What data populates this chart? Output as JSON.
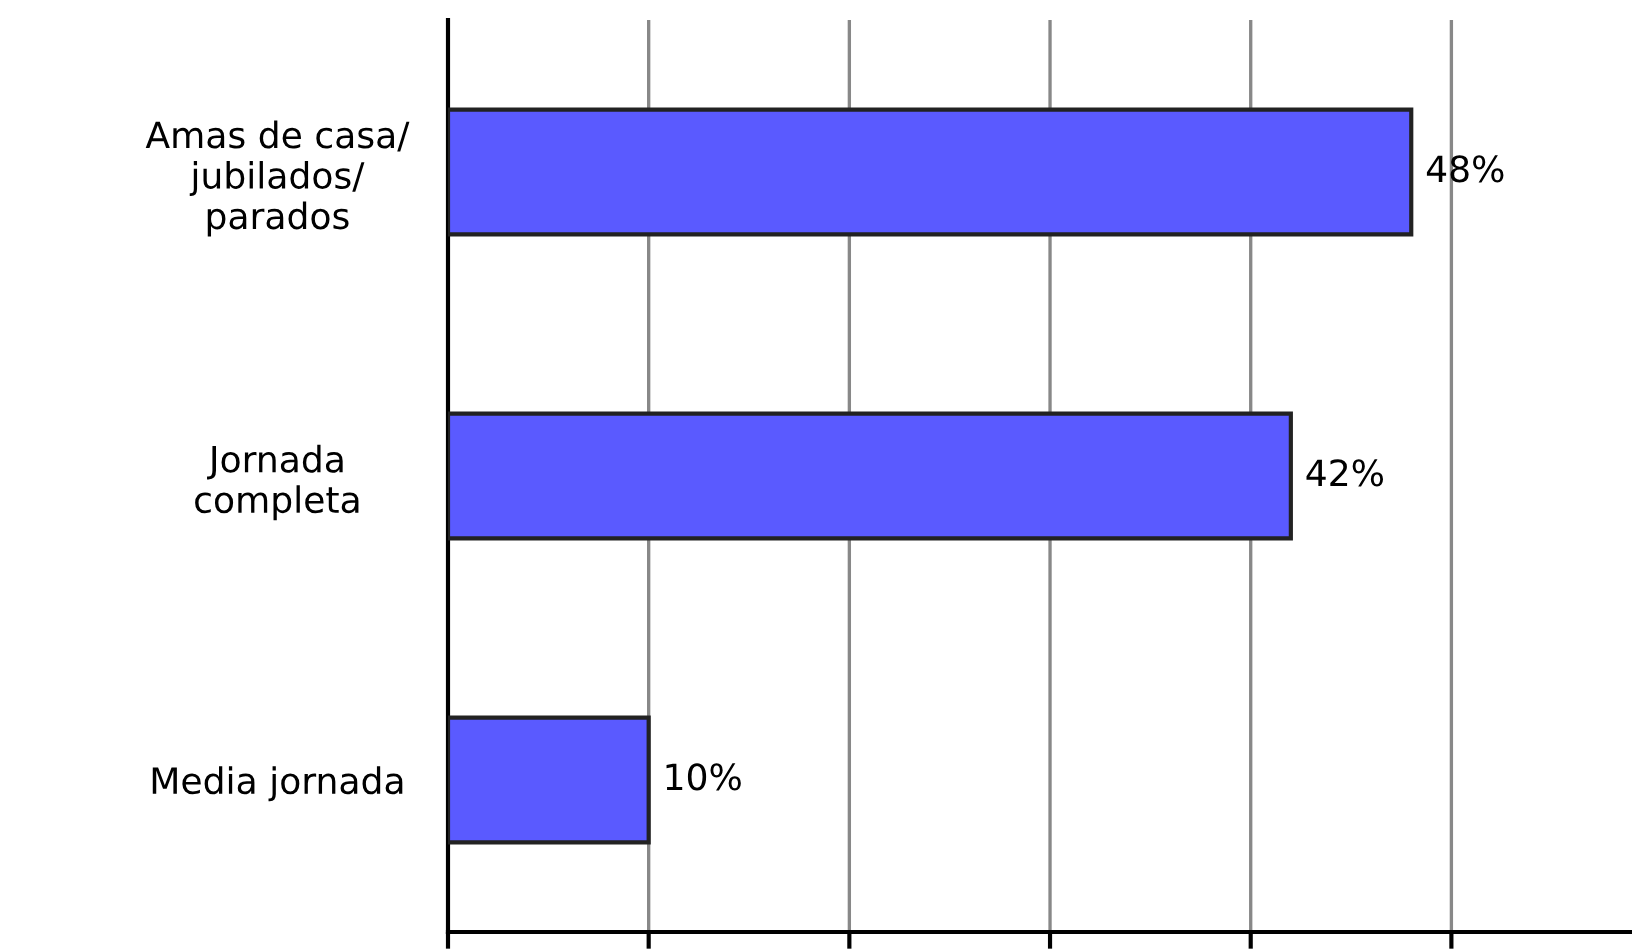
{
  "chart_data": {
    "type": "bar",
    "orientation": "horizontal",
    "categories": [
      "Amas de casa/\njubilados/\nparados",
      "Jornada\ncompleta",
      "Media jornada"
    ],
    "values": [
      48,
      42,
      10
    ],
    "value_labels": [
      "48%",
      "42%",
      "10%"
    ],
    "color": "#5a5aff",
    "xlim": [
      0,
      59
    ],
    "xticks": [
      {
        "value": 0,
        "label": null
      },
      {
        "value": 10,
        "label": null
      },
      {
        "value": 20,
        "label": null
      },
      {
        "value": 30,
        "label": null
      },
      {
        "value": 40,
        "label": null
      },
      {
        "value": 50,
        "label": null
      }
    ],
    "grid": "x",
    "tick_labels": "y"
  }
}
